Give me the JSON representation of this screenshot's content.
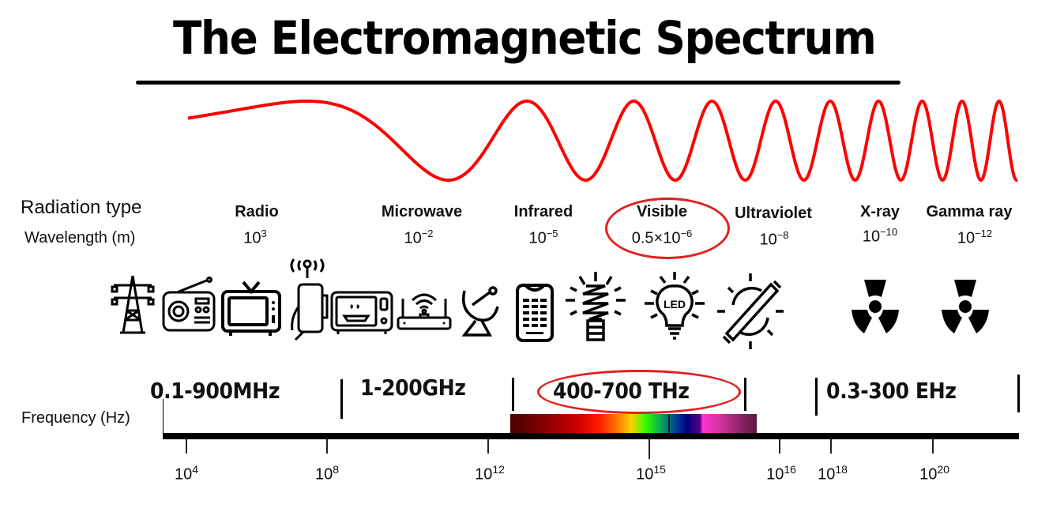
{
  "title": "The Electromagnetic Spectrum",
  "colors": {
    "wave": "#ff0000",
    "highlight": "#e02020",
    "axis": "#000000"
  },
  "labels": {
    "radiation_type": "Radiation type",
    "wavelength": "Wavelength (m)",
    "frequency": "Frequency (Hz)"
  },
  "radiation": [
    {
      "name": "Radio",
      "wl_base": "10",
      "wl_exp": "3"
    },
    {
      "name": "Microwave",
      "wl_base": "10",
      "wl_exp": "−2"
    },
    {
      "name": "Infrared",
      "wl_base": "10",
      "wl_exp": "−5"
    },
    {
      "name": "Visible",
      "wl_base": "0.5×10",
      "wl_exp": "−6",
      "highlighted": true
    },
    {
      "name": "Ultraviolet",
      "wl_base": "10",
      "wl_exp": "−8"
    },
    {
      "name": "X-ray",
      "wl_base": "10",
      "wl_exp": "−10"
    },
    {
      "name": "Gamma ray",
      "wl_base": "10",
      "wl_exp": "−12"
    }
  ],
  "icons": [
    "power-tower-icon",
    "radio-icon",
    "television-icon",
    "smartphone-icon",
    "microwave-oven-icon",
    "wifi-router-icon",
    "satellite-dish-icon",
    "remote-control-icon",
    "cfl-bulb-icon",
    "led-bulb-icon",
    "uv-tube-icon",
    "radiation-icon",
    "radiation-icon"
  ],
  "bands": [
    {
      "label": "0.1-900MHz"
    },
    {
      "label": "1-200GHz"
    },
    {
      "label": "400-700 THz",
      "highlighted": true
    },
    {
      "label": "0.3-300 EHz"
    }
  ],
  "ticks": [
    {
      "base": "10",
      "exp": "4"
    },
    {
      "base": "10",
      "exp": "8"
    },
    {
      "base": "10",
      "exp": "12"
    },
    {
      "base": "10",
      "exp": "15"
    },
    {
      "base": "10",
      "exp": "16"
    },
    {
      "base": "10",
      "exp": "18"
    },
    {
      "base": "10",
      "exp": "20"
    }
  ]
}
